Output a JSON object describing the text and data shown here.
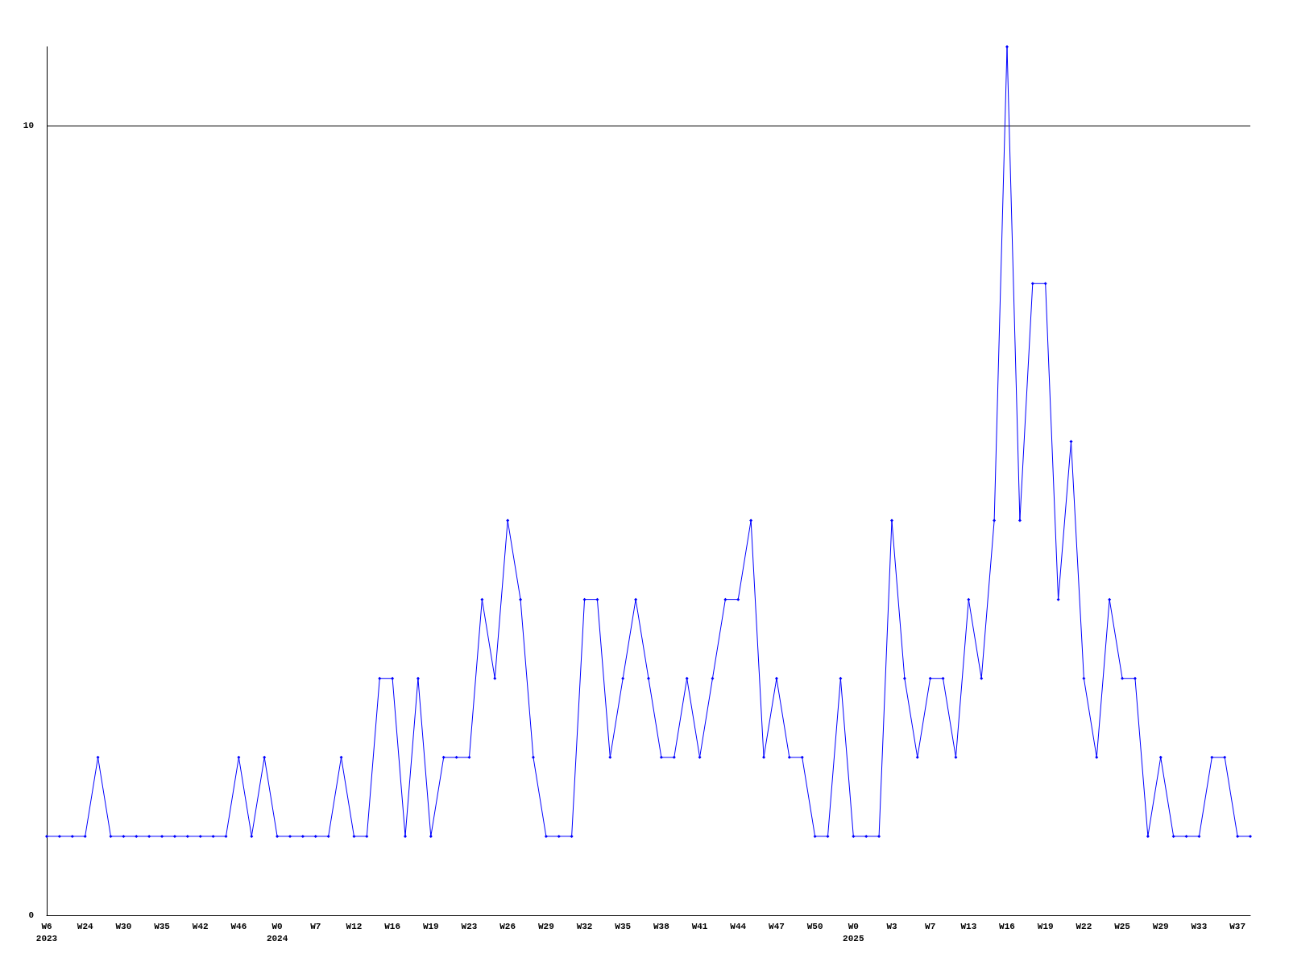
{
  "chart_data": {
    "type": "line",
    "categories": [
      "W6\n2023",
      null,
      null,
      "W24",
      null,
      null,
      "W30",
      null,
      null,
      "W35",
      null,
      null,
      "W42",
      null,
      null,
      "W46",
      null,
      null,
      "W0\n2024",
      null,
      null,
      "W7",
      null,
      null,
      "W12",
      null,
      null,
      "W16",
      null,
      null,
      "W19",
      null,
      null,
      "W23",
      null,
      null,
      "W26",
      null,
      null,
      "W29",
      null,
      null,
      "W32",
      null,
      null,
      "W35",
      null,
      null,
      "W38",
      null,
      null,
      "W41",
      null,
      null,
      "W44",
      null,
      null,
      "W47",
      null,
      null,
      "W50",
      null,
      null,
      "W0\n2025",
      null,
      null,
      "W3",
      null,
      null,
      "W7",
      null,
      null,
      "W13",
      null,
      null,
      "W16",
      null,
      null,
      "W19",
      null,
      null,
      "W22",
      null,
      null,
      "W25",
      null,
      null,
      "W29",
      null,
      null,
      "W33",
      null,
      null,
      "W37",
      null
    ],
    "series": [
      {
        "color": "#0000ff",
        "values": [
          1,
          1,
          1,
          1,
          2,
          1,
          1,
          1,
          1,
          1,
          1,
          1,
          1,
          1,
          1,
          2,
          1,
          2,
          1,
          1,
          1,
          1,
          1,
          2,
          1,
          1,
          3,
          3,
          1,
          3,
          1,
          2,
          2,
          2,
          4,
          3,
          5,
          4,
          2,
          1,
          1,
          1,
          4,
          4,
          2,
          3,
          4,
          3,
          2,
          2,
          3,
          2,
          3,
          4,
          4,
          5,
          2,
          3,
          2,
          2,
          1,
          1,
          3,
          1,
          1,
          1,
          5,
          3,
          2,
          3,
          3,
          2,
          4,
          3,
          5,
          11,
          5,
          8,
          8,
          4,
          6,
          3,
          2,
          4,
          3,
          3,
          1,
          2,
          1,
          1,
          1,
          2,
          2,
          1,
          1
        ]
      }
    ],
    "ylim": [
      0,
      11
    ],
    "yticks": [
      0,
      10
    ],
    "grid": "y",
    "marker": "diamond",
    "line_style": "solid"
  }
}
